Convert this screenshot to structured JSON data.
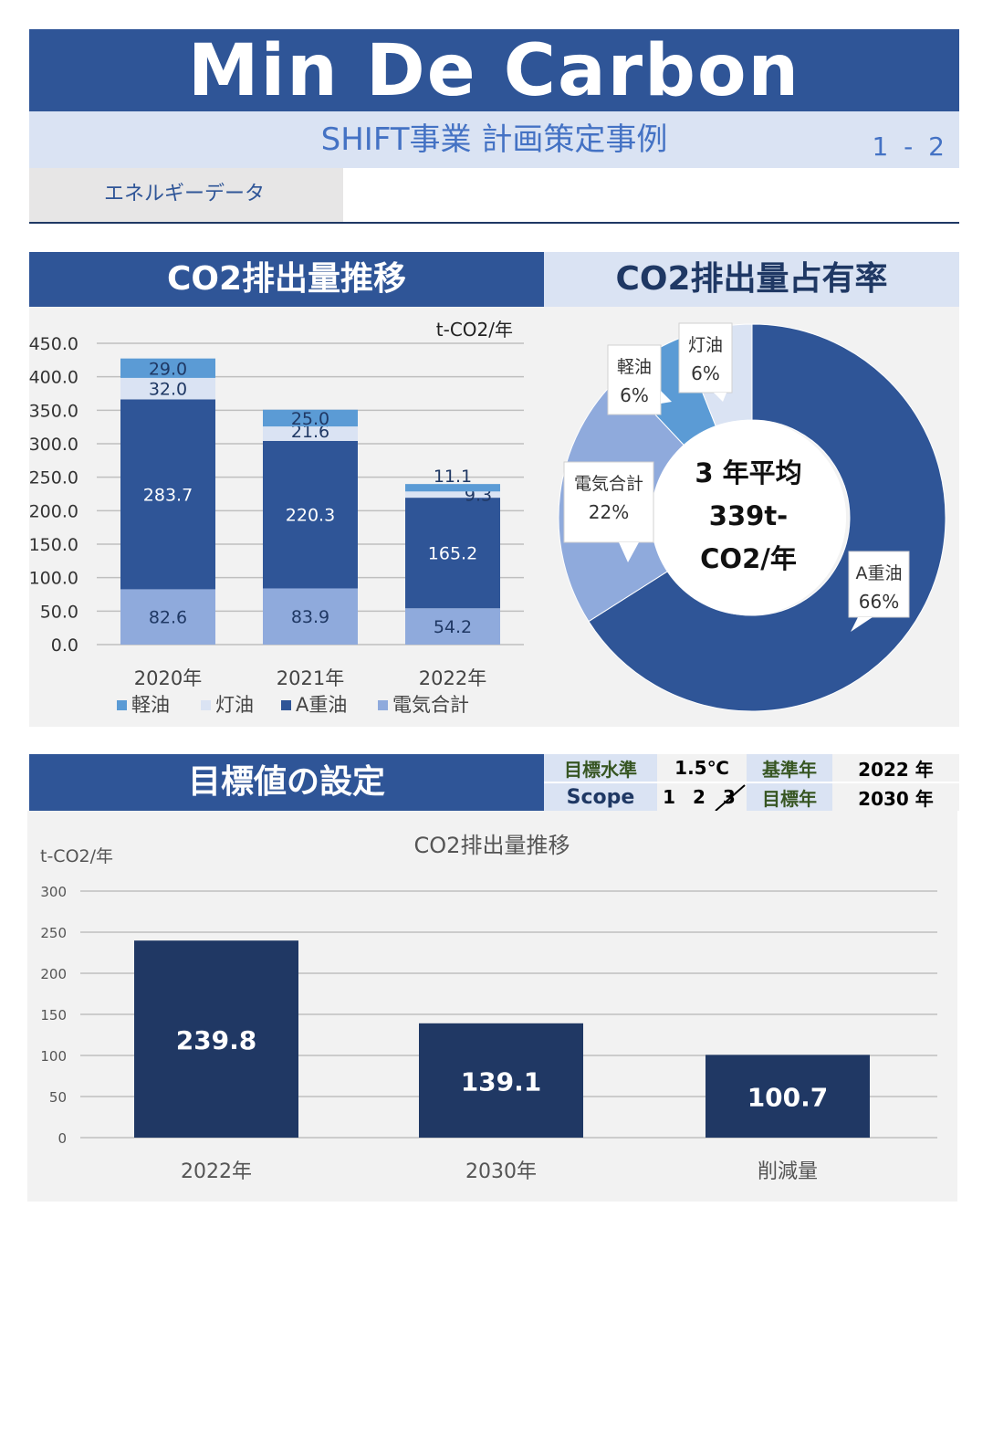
{
  "header": {
    "title": "Min De Carbon",
    "subtitle": "SHIFT事業 計画策定事例",
    "page_no": "1 - 2",
    "section_tab": "エネルギーデータ"
  },
  "trend_section": {
    "title": "CO2排出量推移"
  },
  "share_section": {
    "title": "CO2排出量占有率"
  },
  "target_section": {
    "title": "目標値の設定"
  },
  "target_meta": {
    "level_label": "目標水準",
    "level_value": "1.5℃",
    "base_year_label": "基準年",
    "base_year_value": "2022 年",
    "scope_label": "Scope",
    "scope_value": "1 2 3",
    "target_year_label": "目標年",
    "target_year_value": "2030 年"
  },
  "colors": {
    "navy": "#2f5597",
    "dark_navy": "#203864",
    "light_blue": "#dae3f3",
    "diesel": "#5b9bd5",
    "kerosene": "#dae3f3",
    "heavy_oil": "#2f5597",
    "electricity": "#8faadc"
  },
  "chart_data": [
    {
      "type": "bar",
      "stacked": true,
      "unit_label": "t-CO2/年",
      "categories": [
        "2020年",
        "2021年",
        "2022年"
      ],
      "series": [
        {
          "name": "電気合計",
          "values": [
            82.6,
            83.9,
            54.2
          ],
          "color": "#8faadc",
          "label_color": "#1f3864"
        },
        {
          "name": "A重油",
          "values": [
            283.7,
            220.3,
            165.2
          ],
          "color": "#2f5597",
          "label_color": "#ffffff"
        },
        {
          "name": "灯油",
          "values": [
            32.0,
            21.6,
            9.3
          ],
          "color": "#dae3f3",
          "label_color": "#1f3864"
        },
        {
          "name": "軽油",
          "values": [
            29.0,
            25.0,
            11.1
          ],
          "color": "#5b9bd5",
          "label_color": "#1f3864"
        }
      ],
      "value_labels": [
        [
          "82.6",
          "83.9",
          "54.2"
        ],
        [
          "283.7",
          "220.3",
          "165.2"
        ],
        [
          "32.0",
          "21.6",
          "9.3"
        ],
        [
          "29.0",
          "25.0",
          "11.1"
        ]
      ],
      "legend_order": [
        "軽油",
        "灯油",
        "A重油",
        "電気合計"
      ],
      "yticks": [
        "0.0",
        "50.0",
        "100.0",
        "150.0",
        "200.0",
        "250.0",
        "300.0",
        "350.0",
        "400.0",
        "450.0"
      ],
      "ylim": [
        0,
        450
      ],
      "grid": true,
      "legend": "bottom"
    },
    {
      "type": "pie",
      "donut": true,
      "center_text": [
        "3 年平均",
        "339t-",
        "CO2/年"
      ],
      "slices": [
        {
          "name": "A重油",
          "value": 66,
          "label": "66%",
          "color": "#2f5597"
        },
        {
          "name": "電気合計",
          "value": 22,
          "label": "22%",
          "color": "#8faadc"
        },
        {
          "name": "軽油",
          "value": 6,
          "label": "6%",
          "color": "#5b9bd5"
        },
        {
          "name": "灯油",
          "value": 6,
          "label": "6%",
          "color": "#dae3f3"
        }
      ]
    },
    {
      "type": "bar",
      "title": "CO2排出量推移",
      "ylabel": "t-CO2/年",
      "categories": [
        "2022年",
        "2030年",
        "削減量"
      ],
      "values": [
        239.8,
        139.1,
        100.7
      ],
      "value_labels": [
        "239.8",
        "139.1",
        "100.7"
      ],
      "yticks": [
        "0",
        "50",
        "100",
        "150",
        "200",
        "250",
        "300"
      ],
      "ylim": [
        0,
        300
      ],
      "grid": true,
      "color": "#203864"
    }
  ]
}
